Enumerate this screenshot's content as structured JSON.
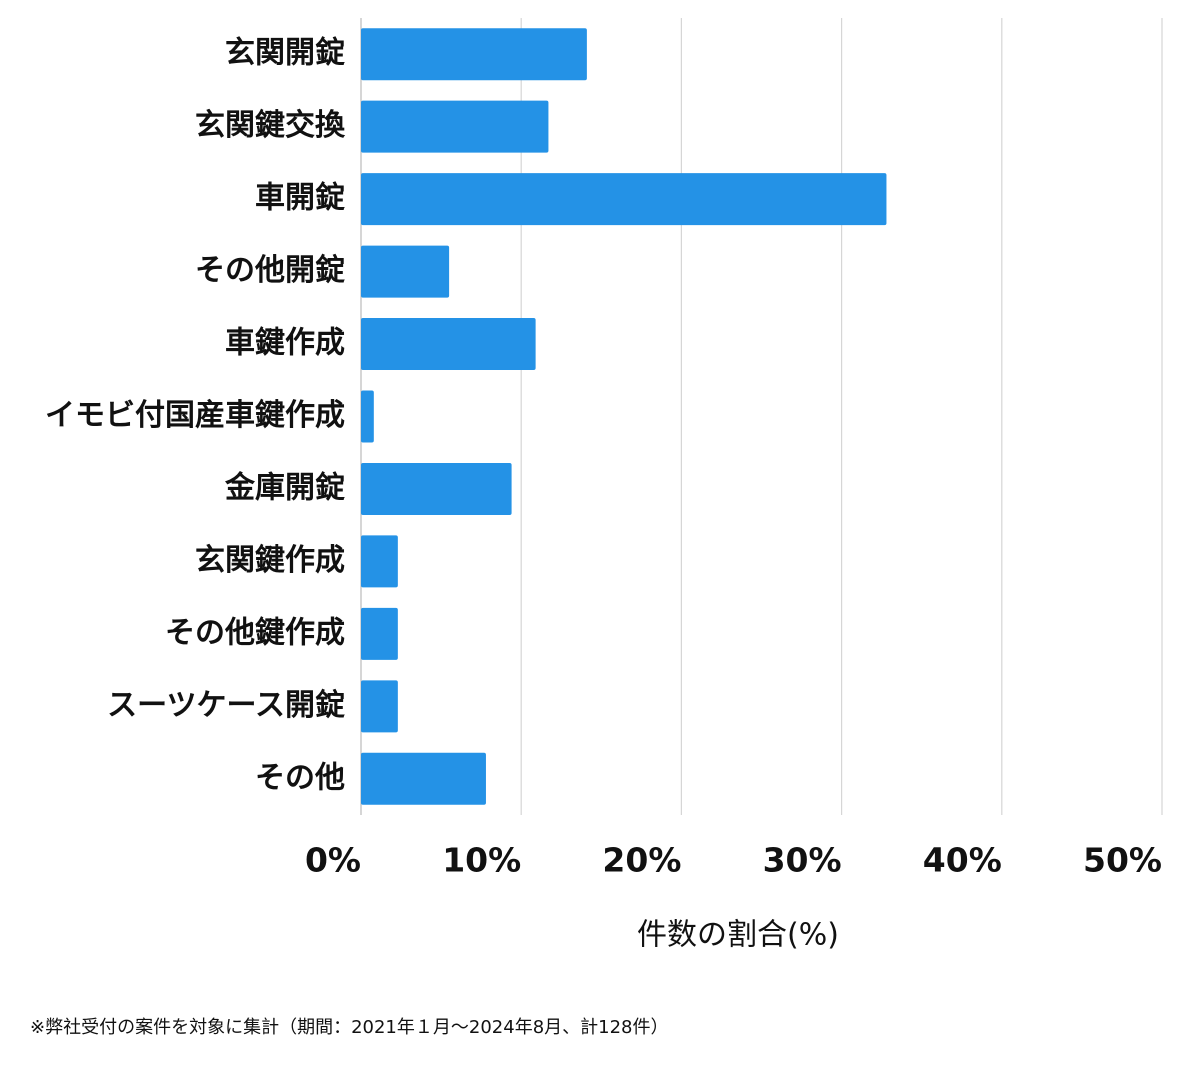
{
  "chart_data": {
    "type": "barh",
    "categories": [
      "玄関開錠",
      "玄関鍵交換",
      "車開錠",
      "その他開錠",
      "車鍵作成",
      "イモビ付国産車鍵作成",
      "金庫開錠",
      "玄関鍵作成",
      "その他鍵作成",
      "スーツケース開錠",
      "その他"
    ],
    "values": [
      14.1,
      11.7,
      32.8,
      5.5,
      10.9,
      0.8,
      9.4,
      2.3,
      2.3,
      2.3,
      7.8
    ],
    "color": "#2492e6",
    "xlim": [
      0,
      50
    ],
    "xticks": [
      {
        "value": 0,
        "label": "0%"
      },
      {
        "value": 10,
        "label": "10%"
      },
      {
        "value": 20,
        "label": "20%"
      },
      {
        "value": 30,
        "label": "30%"
      },
      {
        "value": 40,
        "label": "40%"
      },
      {
        "value": 50,
        "label": "50%"
      }
    ],
    "grid": true,
    "x_label": "件数の割合(%)",
    "note": "※弊社受付の案件を対象に集計（期間：2021年１月〜2024年8月、計128件）"
  }
}
